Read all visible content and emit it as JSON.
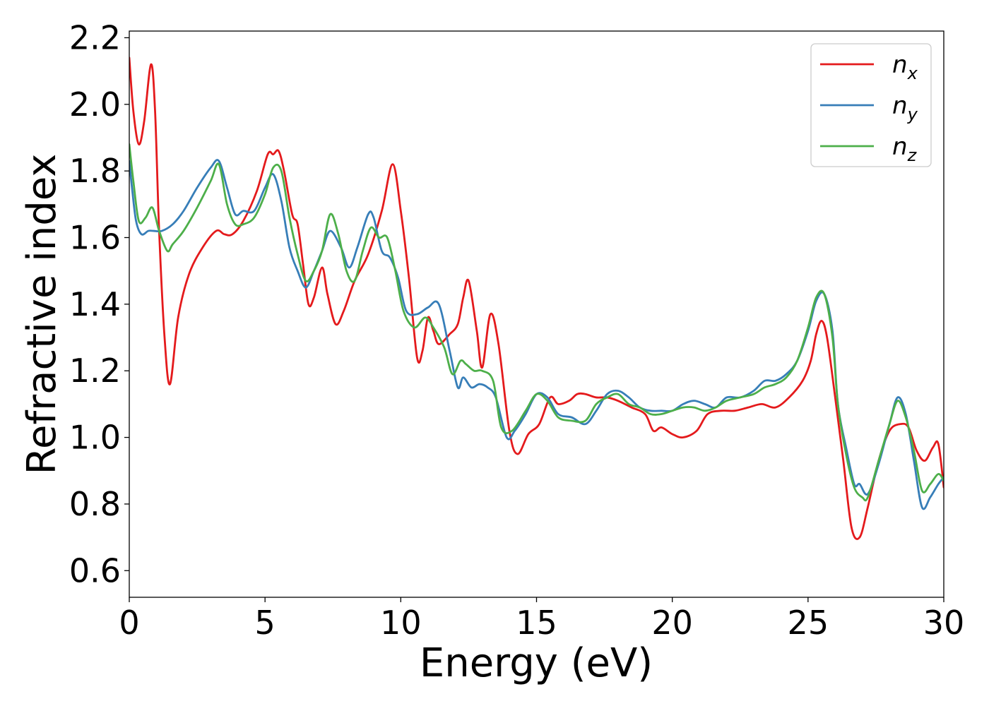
{
  "chart_data": {
    "type": "line",
    "xlabel": "Energy (eV)",
    "ylabel": "Refractive index",
    "xlim": [
      0,
      30
    ],
    "ylim": [
      0.52,
      2.22
    ],
    "xticks": [
      0,
      5,
      10,
      15,
      20,
      25,
      30
    ],
    "xtick_labels": [
      "0",
      "5",
      "10",
      "15",
      "20",
      "25",
      "30"
    ],
    "yticks": [
      0.6,
      0.8,
      1.0,
      1.2,
      1.4,
      1.6,
      1.8,
      2.0,
      2.2
    ],
    "ytick_labels": [
      "0.6",
      "0.8",
      "1.0",
      "1.2",
      "1.4",
      "1.6",
      "1.8",
      "2.0",
      "2.2"
    ],
    "grid": false,
    "legend_position": "top-right",
    "series": [
      {
        "name": "n_x",
        "legend_base": "n",
        "legend_sub": "x",
        "color": "#e41a1c",
        "x": [
          0,
          0.15,
          0.35,
          0.55,
          0.8,
          0.95,
          1.1,
          1.3,
          1.5,
          1.8,
          2.2,
          2.7,
          3.2,
          3.5,
          3.8,
          4.2,
          4.7,
          5.1,
          5.3,
          5.5,
          5.7,
          6.0,
          6.2,
          6.4,
          6.6,
          6.8,
          7.1,
          7.3,
          7.6,
          7.9,
          8.3,
          8.8,
          9.3,
          9.7,
          10.0,
          10.3,
          10.6,
          10.8,
          11.0,
          11.2,
          11.4,
          11.8,
          12.1,
          12.3,
          12.5,
          12.8,
          13.0,
          13.3,
          13.6,
          14.0,
          14.3,
          14.7,
          15.1,
          15.5,
          15.8,
          16.2,
          16.5,
          16.8,
          17.2,
          17.6,
          18.0,
          18.5,
          19.0,
          19.3,
          19.6,
          20.0,
          20.4,
          20.9,
          21.3,
          21.8,
          22.3,
          22.8,
          23.3,
          23.8,
          24.3,
          24.8,
          25.1,
          25.3,
          25.5,
          25.7,
          26.0,
          26.3,
          26.6,
          26.9,
          27.2,
          27.6,
          28.0,
          28.4,
          28.7,
          29.0,
          29.3,
          29.6,
          29.8,
          30.0
        ],
        "y": [
          2.14,
          1.98,
          1.88,
          1.95,
          2.12,
          1.98,
          1.62,
          1.3,
          1.16,
          1.36,
          1.49,
          1.57,
          1.62,
          1.61,
          1.61,
          1.65,
          1.74,
          1.85,
          1.85,
          1.86,
          1.8,
          1.67,
          1.64,
          1.52,
          1.4,
          1.42,
          1.51,
          1.43,
          1.34,
          1.38,
          1.47,
          1.55,
          1.68,
          1.82,
          1.68,
          1.48,
          1.24,
          1.26,
          1.36,
          1.32,
          1.28,
          1.31,
          1.34,
          1.42,
          1.47,
          1.32,
          1.21,
          1.37,
          1.28,
          1.02,
          0.95,
          1.01,
          1.04,
          1.12,
          1.1,
          1.11,
          1.13,
          1.13,
          1.12,
          1.12,
          1.11,
          1.09,
          1.07,
          1.02,
          1.03,
          1.01,
          1.0,
          1.02,
          1.07,
          1.08,
          1.08,
          1.09,
          1.1,
          1.09,
          1.12,
          1.17,
          1.23,
          1.31,
          1.35,
          1.3,
          1.12,
          0.93,
          0.73,
          0.7,
          0.79,
          0.93,
          1.02,
          1.04,
          1.03,
          0.96,
          0.93,
          0.97,
          0.98,
          0.85
        ]
      },
      {
        "name": "n_y",
        "legend_base": "n",
        "legend_sub": "y",
        "color": "#377eb8",
        "x": [
          0,
          0.1,
          0.25,
          0.45,
          0.7,
          0.9,
          1.2,
          1.6,
          2.0,
          2.5,
          3.0,
          3.3,
          3.6,
          3.9,
          4.2,
          4.6,
          5.0,
          5.3,
          5.6,
          5.9,
          6.2,
          6.5,
          6.8,
          7.1,
          7.4,
          7.8,
          8.1,
          8.4,
          8.8,
          9.0,
          9.3,
          9.6,
          9.9,
          10.2,
          10.6,
          11.0,
          11.4,
          11.8,
          12.1,
          12.3,
          12.6,
          12.9,
          13.2,
          13.5,
          13.9,
          14.2,
          14.6,
          15.0,
          15.4,
          15.8,
          16.3,
          16.8,
          17.2,
          17.6,
          18.0,
          18.4,
          18.8,
          19.2,
          19.6,
          20.0,
          20.4,
          20.8,
          21.2,
          21.6,
          22.0,
          22.5,
          23.0,
          23.4,
          23.8,
          24.2,
          24.6,
          25.0,
          25.3,
          25.6,
          25.9,
          26.1,
          26.4,
          26.7,
          26.9,
          27.2,
          27.6,
          28.0,
          28.3,
          28.6,
          28.9,
          29.2,
          29.5,
          29.8,
          30.0
        ],
        "y": [
          1.83,
          1.75,
          1.65,
          1.61,
          1.62,
          1.62,
          1.62,
          1.64,
          1.68,
          1.75,
          1.81,
          1.83,
          1.75,
          1.67,
          1.68,
          1.68,
          1.75,
          1.79,
          1.71,
          1.57,
          1.5,
          1.45,
          1.5,
          1.56,
          1.62,
          1.57,
          1.51,
          1.57,
          1.67,
          1.66,
          1.56,
          1.54,
          1.48,
          1.38,
          1.37,
          1.39,
          1.4,
          1.26,
          1.15,
          1.18,
          1.15,
          1.16,
          1.15,
          1.12,
          1.0,
          1.02,
          1.07,
          1.13,
          1.12,
          1.07,
          1.06,
          1.04,
          1.08,
          1.13,
          1.14,
          1.12,
          1.09,
          1.08,
          1.08,
          1.08,
          1.1,
          1.11,
          1.1,
          1.09,
          1.12,
          1.12,
          1.14,
          1.17,
          1.17,
          1.19,
          1.23,
          1.32,
          1.41,
          1.43,
          1.32,
          1.1,
          0.97,
          0.86,
          0.86,
          0.83,
          0.92,
          1.04,
          1.12,
          1.07,
          0.93,
          0.79,
          0.82,
          0.86,
          0.88
        ]
      },
      {
        "name": "n_z",
        "legend_base": "n",
        "legend_sub": "z",
        "color": "#4daf4a",
        "x": [
          0,
          0.15,
          0.35,
          0.6,
          0.85,
          1.1,
          1.4,
          1.6,
          2.0,
          2.5,
          3.0,
          3.3,
          3.6,
          3.9,
          4.2,
          4.6,
          5.0,
          5.3,
          5.6,
          5.9,
          6.2,
          6.5,
          6.8,
          7.1,
          7.4,
          7.7,
          8.0,
          8.3,
          8.6,
          8.9,
          9.2,
          9.5,
          9.8,
          10.1,
          10.5,
          10.9,
          11.2,
          11.6,
          11.9,
          12.2,
          12.4,
          12.7,
          13.0,
          13.4,
          13.7,
          14.1,
          14.6,
          15.0,
          15.4,
          15.8,
          16.3,
          16.8,
          17.2,
          17.6,
          18.0,
          18.4,
          18.8,
          19.2,
          19.6,
          20.0,
          20.4,
          20.8,
          21.2,
          21.6,
          22.0,
          22.5,
          23.0,
          23.4,
          23.8,
          24.2,
          24.6,
          25.0,
          25.3,
          25.6,
          25.9,
          26.1,
          26.4,
          26.7,
          27.0,
          27.2,
          27.6,
          28.0,
          28.3,
          28.6,
          28.9,
          29.2,
          29.5,
          29.8,
          30.0
        ],
        "y": [
          1.88,
          1.77,
          1.65,
          1.66,
          1.69,
          1.62,
          1.56,
          1.58,
          1.62,
          1.69,
          1.77,
          1.82,
          1.7,
          1.64,
          1.64,
          1.66,
          1.73,
          1.81,
          1.8,
          1.66,
          1.55,
          1.47,
          1.5,
          1.56,
          1.67,
          1.61,
          1.5,
          1.47,
          1.56,
          1.63,
          1.6,
          1.6,
          1.5,
          1.38,
          1.33,
          1.36,
          1.33,
          1.27,
          1.19,
          1.23,
          1.22,
          1.2,
          1.2,
          1.17,
          1.03,
          1.02,
          1.08,
          1.13,
          1.11,
          1.06,
          1.05,
          1.05,
          1.1,
          1.12,
          1.13,
          1.1,
          1.09,
          1.07,
          1.07,
          1.08,
          1.09,
          1.09,
          1.08,
          1.09,
          1.11,
          1.12,
          1.13,
          1.15,
          1.16,
          1.18,
          1.23,
          1.33,
          1.42,
          1.43,
          1.3,
          1.1,
          0.95,
          0.85,
          0.82,
          0.82,
          0.93,
          1.04,
          1.11,
          1.06,
          0.96,
          0.84,
          0.86,
          0.89,
          0.87
        ]
      }
    ]
  }
}
